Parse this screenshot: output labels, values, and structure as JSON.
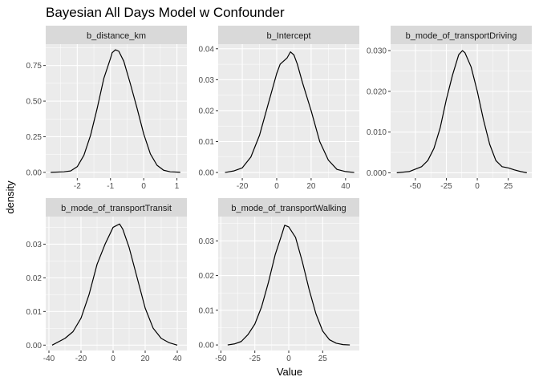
{
  "chart_data": {
    "type": "line",
    "title": "Bayesian All Days Model w Confounder",
    "xlabel": "Value",
    "ylabel": "density",
    "grid": true,
    "colors": {
      "panel_bg": "#ebebeb",
      "strip_bg": "#d9d9d9",
      "grid_major": "#ffffff",
      "line": "#000000",
      "tick": "#333333"
    },
    "panels": [
      {
        "name": "b_distance_km",
        "xlim": [
          -2.95,
          1.3
        ],
        "ylim": [
          -0.04,
          0.9
        ],
        "xticks": [
          -3,
          -2,
          -1,
          0,
          1
        ],
        "yticks": [
          0.0,
          0.25,
          0.5,
          0.75
        ],
        "ytick_labels": [
          "0.00",
          "0.25",
          "0.50",
          "0.75"
        ],
        "series": [
          {
            "x": [
              -2.8,
              -2.4,
              -2.2,
              -2.0,
              -1.8,
              -1.6,
              -1.4,
              -1.2,
              -1.0,
              -0.95,
              -0.85,
              -0.75,
              -0.6,
              -0.4,
              -0.2,
              0.0,
              0.2,
              0.4,
              0.6,
              0.8,
              1.1
            ],
            "y": [
              0.0,
              0.004,
              0.01,
              0.04,
              0.12,
              0.26,
              0.45,
              0.66,
              0.8,
              0.84,
              0.86,
              0.85,
              0.78,
              0.62,
              0.45,
              0.27,
              0.13,
              0.05,
              0.015,
              0.004,
              0.001
            ]
          }
        ]
      },
      {
        "name": "b_Intercept",
        "xlim": [
          -34,
          48
        ],
        "ylim": [
          -0.0018,
          0.0415
        ],
        "xticks": [
          -20,
          0,
          20,
          40
        ],
        "yticks": [
          0.0,
          0.01,
          0.02,
          0.03,
          0.04
        ],
        "ytick_labels": [
          "0.00",
          "0.01",
          "0.02",
          "0.03",
          "0.04"
        ],
        "series": [
          {
            "x": [
              -30,
              -25,
              -20,
              -15,
              -10,
              -5,
              0,
              2,
              4,
              6,
              8,
              10,
              12,
              15,
              20,
              25,
              30,
              35,
              40,
              45
            ],
            "y": [
              0.0,
              0.0005,
              0.0015,
              0.005,
              0.012,
              0.022,
              0.032,
              0.035,
              0.036,
              0.037,
              0.039,
              0.038,
              0.035,
              0.029,
              0.02,
              0.01,
              0.004,
              0.001,
              0.0003,
              0.0
            ]
          }
        ]
      },
      {
        "name": "b_mode_of_transportDriving",
        "xlim": [
          -70,
          44
        ],
        "ylim": [
          -0.0013,
          0.0316
        ],
        "xticks": [
          -50,
          -25,
          0,
          25
        ],
        "yticks": [
          0.0,
          0.01,
          0.02,
          0.03
        ],
        "ytick_labels": [
          "0.000",
          "0.010",
          "0.020",
          "0.030"
        ],
        "series": [
          {
            "x": [
              -65,
              -55,
              -45,
              -40,
              -35,
              -30,
              -25,
              -20,
              -15,
              -12,
              -10,
              -5,
              0,
              5,
              10,
              15,
              20,
              25,
              30,
              35,
              40
            ],
            "y": [
              0.0,
              0.0003,
              0.0015,
              0.003,
              0.006,
              0.011,
              0.018,
              0.024,
              0.029,
              0.03,
              0.0295,
              0.026,
              0.02,
              0.013,
              0.007,
              0.003,
              0.0015,
              0.0012,
              0.0007,
              0.0003,
              0.0
            ]
          }
        ]
      },
      {
        "name": "b_mode_of_transportTransit",
        "xlim": [
          -42,
          46
        ],
        "ylim": [
          -0.0016,
          0.0382
        ],
        "xticks": [
          -40,
          -20,
          0,
          20,
          40
        ],
        "yticks": [
          0.0,
          0.01,
          0.02,
          0.03
        ],
        "ytick_labels": [
          "0.00",
          "0.01",
          "0.02",
          "0.03"
        ],
        "series": [
          {
            "x": [
              -38,
              -30,
              -25,
              -20,
              -15,
              -10,
              -5,
              0,
              2,
              4,
              6,
              10,
              15,
              20,
              25,
              30,
              35,
              40
            ],
            "y": [
              0.0,
              0.002,
              0.004,
              0.008,
              0.015,
              0.024,
              0.03,
              0.035,
              0.0355,
              0.036,
              0.0345,
              0.029,
              0.02,
              0.011,
              0.005,
              0.002,
              0.0007,
              0.0
            ]
          }
        ]
      },
      {
        "name": "b_mode_of_transportWalking",
        "xlim": [
          -52,
          52
        ],
        "ylim": [
          -0.0016,
          0.037
        ],
        "xticks": [
          -50,
          -25,
          0,
          25
        ],
        "yticks": [
          0.0,
          0.01,
          0.02,
          0.03
        ],
        "ytick_labels": [
          "0.00",
          "0.01",
          "0.02",
          "0.03"
        ],
        "series": [
          {
            "x": [
              -45,
              -40,
              -35,
              -30,
              -25,
              -20,
              -15,
              -10,
              -5,
              -3,
              0,
              5,
              10,
              15,
              20,
              25,
              30,
              35,
              40,
              45
            ],
            "y": [
              0.0,
              0.0003,
              0.001,
              0.003,
              0.006,
              0.011,
              0.018,
              0.026,
              0.032,
              0.0345,
              0.034,
              0.031,
              0.024,
              0.016,
              0.009,
              0.004,
              0.0015,
              0.0005,
              0.0001,
              0.0
            ]
          }
        ]
      }
    ]
  }
}
